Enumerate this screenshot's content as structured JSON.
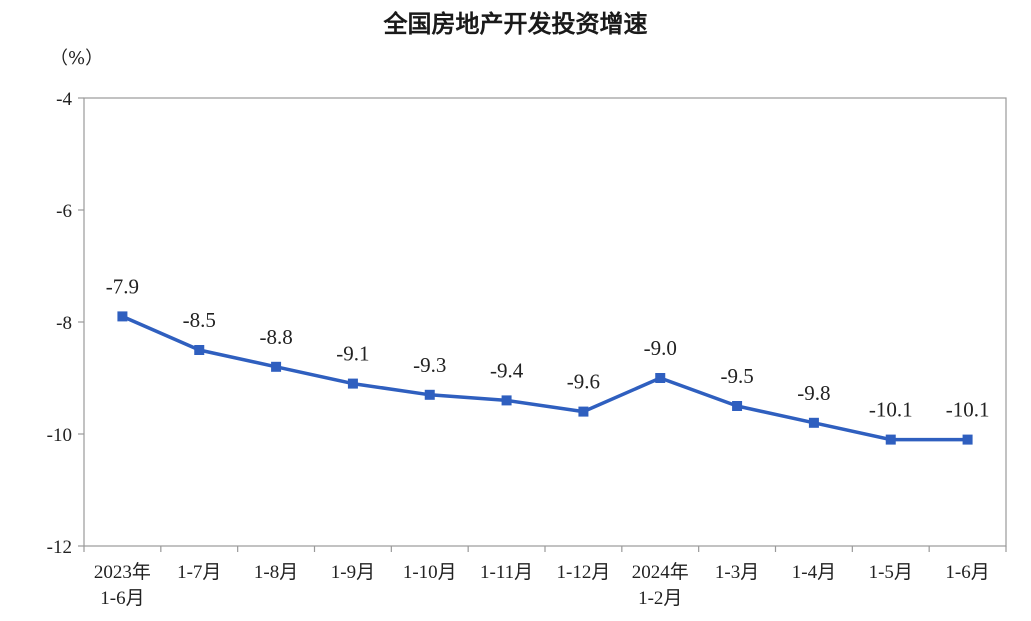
{
  "title": "全国房地产开发投资增速",
  "unit_label": "（%）",
  "colors": {
    "line": "#2f5fbf",
    "axis": "#999999"
  },
  "chart_data": {
    "type": "line",
    "title": "全国房地产开发投资增速",
    "ylabel": "（%）",
    "xlabel": "",
    "ylim": [
      -12,
      -4
    ],
    "yticks": [
      -4,
      -6,
      -8,
      -10,
      -12
    ],
    "grid": false,
    "categories": [
      [
        "2023年",
        "1-6月"
      ],
      [
        "1-7月"
      ],
      [
        "1-8月"
      ],
      [
        "1-9月"
      ],
      [
        "1-10月"
      ],
      [
        "1-11月"
      ],
      [
        "1-12月"
      ],
      [
        "2024年",
        "1-2月"
      ],
      [
        "1-3月"
      ],
      [
        "1-4月"
      ],
      [
        "1-5月"
      ],
      [
        "1-6月"
      ]
    ],
    "series": [
      {
        "values": [
          -7.9,
          -8.5,
          -8.8,
          -9.1,
          -9.3,
          -9.4,
          -9.6,
          -9.0,
          -9.5,
          -9.8,
          -10.1,
          -10.1
        ],
        "labels": [
          "-7.9",
          "-8.5",
          "-8.8",
          "-9.1",
          "-9.3",
          "-9.4",
          "-9.6",
          "-9.0",
          "-9.5",
          "-9.8",
          "-10.1",
          "-10.1"
        ]
      }
    ]
  }
}
